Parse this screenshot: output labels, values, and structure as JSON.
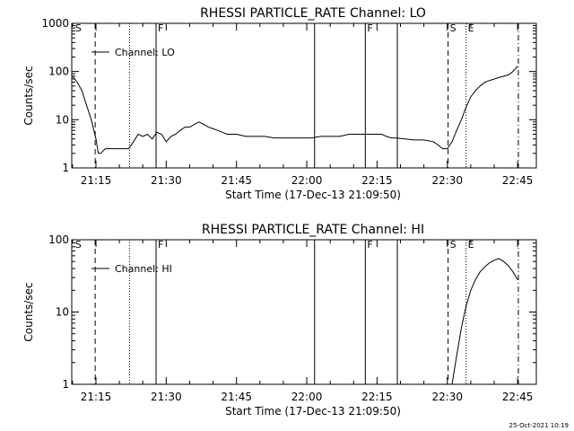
{
  "timestamp": "25-Oct-2021 10:19",
  "chart_data": [
    {
      "type": "line",
      "title": "RHESSI PARTICLE_RATE Channel: LO",
      "xlabel": "Start Time (17-Dec-13 21:09:50)",
      "ylabel": "Counts/sec",
      "yscale": "log",
      "ylim": [
        1,
        1000
      ],
      "yticks": [
        "1",
        "10",
        "100",
        "1000"
      ],
      "xlim": [
        "21:09:50",
        "22:49:00"
      ],
      "xticks": [
        "21:15",
        "21:30",
        "21:45",
        "22:00",
        "22:15",
        "22:30",
        "22:45"
      ],
      "legend": "top-left",
      "series": [
        {
          "name": "Channel: LO",
          "x": [
            "21:10",
            "21:11",
            "21:12",
            "21:13",
            "21:14",
            "21:15",
            "21:15:30",
            "21:16",
            "21:17",
            "21:18",
            "21:19",
            "21:20",
            "21:21",
            "21:22",
            "21:23",
            "21:24",
            "21:25",
            "21:26",
            "21:27",
            "21:28",
            "21:29",
            "21:30",
            "21:31",
            "21:32",
            "21:33",
            "21:34",
            "21:35",
            "21:36",
            "21:37",
            "21:38",
            "21:39",
            "21:40",
            "21:41",
            "21:42",
            "21:43",
            "21:45",
            "21:47",
            "21:49",
            "21:51",
            "21:53",
            "21:55",
            "21:57",
            "21:59",
            "22:01",
            "22:03",
            "22:05",
            "22:07",
            "22:09",
            "22:11",
            "22:13",
            "22:15",
            "22:16",
            "22:17",
            "22:18",
            "22:19",
            "22:21",
            "22:23",
            "22:25",
            "22:27",
            "22:28",
            "22:29",
            "22:30",
            "22:31",
            "22:32",
            "22:33",
            "22:34",
            "22:35",
            "22:36",
            "22:37",
            "22:38",
            "22:39",
            "22:40",
            "22:41",
            "22:42",
            "22:43",
            "22:44",
            "22:45"
          ],
          "values": [
            80,
            60,
            40,
            20,
            10,
            4,
            2,
            2,
            2.5,
            2.5,
            2.5,
            2.5,
            2.5,
            2.5,
            3.5,
            5,
            4.5,
            5,
            4,
            5.5,
            5,
            3.5,
            4.5,
            5,
            6,
            7,
            7,
            8,
            9,
            8,
            7,
            6.5,
            6,
            5.5,
            5,
            5,
            4.5,
            4.5,
            4.5,
            4.2,
            4.2,
            4.2,
            4.2,
            4.2,
            4.5,
            4.5,
            4.5,
            5,
            5,
            5,
            5,
            5,
            4.5,
            4.2,
            4.2,
            4,
            3.8,
            3.8,
            3.5,
            3,
            2.5,
            2.5,
            3.5,
            6,
            10,
            18,
            30,
            40,
            50,
            60,
            65,
            70,
            75,
            80,
            85,
            100,
            130
          ]
        }
      ],
      "annotations": [
        {
          "label": "S",
          "x": "21:10:10",
          "style": "none"
        },
        {
          "label": "",
          "x": "21:14:50",
          "style": "dashed"
        },
        {
          "label": "",
          "x": "21:22:10",
          "style": "dotted"
        },
        {
          "label": "F",
          "x": "21:27:50",
          "style": "solid"
        },
        {
          "label": "",
          "x": "22:01:40",
          "style": "solid"
        },
        {
          "label": "F",
          "x": "22:12:30",
          "style": "solid"
        },
        {
          "label": "",
          "x": "22:19:20",
          "style": "solid"
        },
        {
          "label": "S",
          "x": "22:30:10",
          "style": "dashed"
        },
        {
          "label": "E",
          "x": "22:34:00",
          "style": "dotted"
        },
        {
          "label": "",
          "x": "22:45:10",
          "style": "dashdot"
        }
      ]
    },
    {
      "type": "line",
      "title": "RHESSI PARTICLE_RATE Channel: HI",
      "xlabel": "Start Time (17-Dec-13 21:09:50)",
      "ylabel": "Counts/sec",
      "yscale": "log",
      "ylim": [
        1,
        100
      ],
      "yticks": [
        "1",
        "10",
        "100"
      ],
      "xlim": [
        "21:09:50",
        "22:49:00"
      ],
      "xticks": [
        "21:15",
        "21:30",
        "21:45",
        "22:00",
        "22:15",
        "22:30",
        "22:45"
      ],
      "legend": "top-left",
      "series": [
        {
          "name": "Channel: HI",
          "x": [
            "22:31",
            "22:32",
            "22:33",
            "22:34",
            "22:35",
            "22:36",
            "22:37",
            "22:38",
            "22:39",
            "22:40",
            "22:41",
            "22:42",
            "22:43",
            "22:44",
            "22:45"
          ],
          "values": [
            1,
            2.5,
            6,
            12,
            20,
            28,
            36,
            42,
            48,
            52,
            55,
            50,
            44,
            36,
            28
          ]
        }
      ],
      "annotations": [
        {
          "label": "S",
          "x": "21:10:10",
          "style": "none"
        },
        {
          "label": "",
          "x": "21:14:50",
          "style": "dashed"
        },
        {
          "label": "",
          "x": "21:22:10",
          "style": "dotted"
        },
        {
          "label": "F",
          "x": "21:27:50",
          "style": "solid"
        },
        {
          "label": "",
          "x": "22:01:40",
          "style": "solid"
        },
        {
          "label": "F",
          "x": "22:12:30",
          "style": "solid"
        },
        {
          "label": "",
          "x": "22:19:20",
          "style": "solid"
        },
        {
          "label": "S",
          "x": "22:30:10",
          "style": "dashed"
        },
        {
          "label": "E",
          "x": "22:34:00",
          "style": "dotted"
        },
        {
          "label": "",
          "x": "22:45:10",
          "style": "dashdot"
        }
      ]
    }
  ]
}
